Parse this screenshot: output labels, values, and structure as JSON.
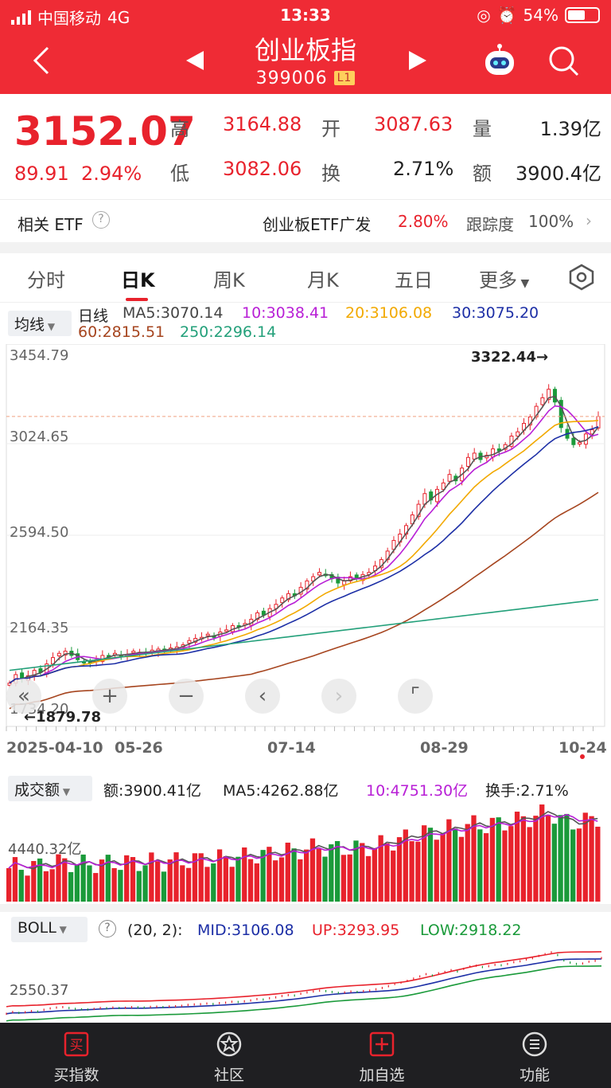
{
  "status": {
    "carrier": "中国移动",
    "network": "4G",
    "time": "13:33",
    "battery": "54%"
  },
  "header": {
    "title": "创业板指",
    "code": "399006",
    "level": "L1"
  },
  "quote": {
    "price": "3152.07",
    "change": "89.91",
    "change_pct": "2.94%",
    "high_label": "高",
    "high": "3164.88",
    "open_label": "开",
    "open": "3087.63",
    "vol_label": "量",
    "vol": "1.39亿",
    "low_label": "低",
    "low": "3082.06",
    "turn_label": "换",
    "turn": "2.71%",
    "amt_label": "额",
    "amt": "3900.4亿"
  },
  "etf": {
    "label": "相关 ETF",
    "name": "创业板ETF广发",
    "pct": "2.80%",
    "track_label": "跟踪度",
    "track": "100%"
  },
  "tabs": [
    "分时",
    "日K",
    "周K",
    "月K",
    "五日",
    "更多"
  ],
  "ma": {
    "selector": "均线",
    "type": "日线",
    "ma5": "MA5:3070.14",
    "ma10": "10:3038.41",
    "ma20": "20:3106.08",
    "ma30": "30:3075.20",
    "ma60": "60:2815.51",
    "ma250": "250:2296.14"
  },
  "colors": {
    "up": "#e8222c",
    "down": "#1a9a3a",
    "ma5": "#555555",
    "ma10": "#b81fd6",
    "ma20": "#f2a900",
    "ma30": "#1d2fa6",
    "ma60": "#a6451f",
    "ma250": "#23a07a"
  },
  "kchart": {
    "y_ticks": [
      "3454.79",
      "3024.65",
      "2594.50",
      "2164.35",
      "1734.20"
    ],
    "max_label": "3322.44→",
    "min_label": "←1879.78",
    "dates": [
      "2025-04-10",
      "05-26",
      "07-14",
      "08-29",
      "10-24"
    ]
  },
  "chart_data": {
    "type": "candlestick",
    "ylim": [
      1734.2,
      3454.79
    ],
    "closes": [
      1900,
      1940,
      1920,
      1935,
      1960,
      1950,
      1990,
      2020,
      2040,
      2050,
      2030,
      2010,
      2000,
      1995,
      2010,
      2030,
      2025,
      2040,
      2030,
      2035,
      2050,
      2045,
      2040,
      2055,
      2060,
      2050,
      2065,
      2070,
      2080,
      2100,
      2110,
      2115,
      2130,
      2120,
      2140,
      2150,
      2170,
      2165,
      2180,
      2200,
      2230,
      2220,
      2250,
      2270,
      2300,
      2320,
      2310,
      2350,
      2380,
      2400,
      2420,
      2410,
      2390,
      2370,
      2380,
      2400,
      2390,
      2410,
      2420,
      2450,
      2480,
      2520,
      2570,
      2600,
      2640,
      2690,
      2740,
      2790,
      2760,
      2810,
      2840,
      2880,
      2850,
      2910,
      2960,
      2980,
      2950,
      2970,
      3000,
      2990,
      3020,
      3060,
      3080,
      3120,
      3150,
      3200,
      3240,
      3280,
      3220,
      3100,
      3050,
      3020,
      3030,
      3070,
      3090,
      3152
    ]
  },
  "volume": {
    "selector": "成交额",
    "amt": "额:3900.41亿",
    "ma5": "MA5:4262.88亿",
    "ma10": "10:4751.30亿",
    "turn": "换手:2.71%",
    "y_tick": "4440.32亿"
  },
  "boll": {
    "selector": "BOLL",
    "params": "(20, 2):",
    "mid": "MID:3106.08",
    "up": "UP:3293.95",
    "low": "LOW:2918.22",
    "y_tick": "2550.37"
  },
  "bottom": [
    "买指数",
    "社区",
    "加自选",
    "功能"
  ],
  "icons": {
    "back": "chevron-left-icon",
    "search": "search-icon",
    "robot": "robot-icon",
    "settings": "hexagon-settings-icon"
  }
}
